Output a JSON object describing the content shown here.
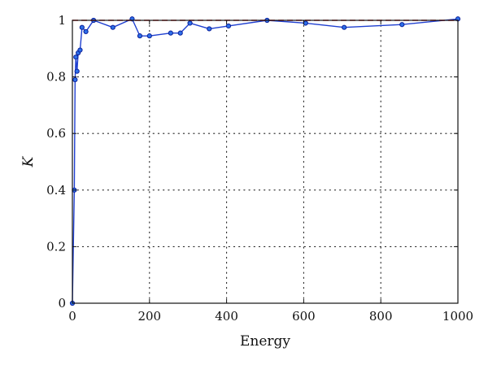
{
  "chart_data": {
    "type": "line",
    "xlabel": "Energy",
    "ylabel": "K",
    "xlim": [
      0,
      1000
    ],
    "ylim": [
      0,
      1
    ],
    "x_ticks": [
      0,
      200,
      400,
      600,
      800,
      1000
    ],
    "y_ticks": [
      0,
      0.2,
      0.4,
      0.6,
      0.8,
      1
    ],
    "x_tick_labels": [
      "0",
      "200",
      "400",
      "600",
      "800",
      "1000"
    ],
    "y_tick_labels": [
      "0",
      "0.2",
      "0.4",
      "0.6",
      "0.8",
      "1"
    ],
    "grid": true,
    "series": [
      {
        "color": "#1f3fd0",
        "marker": "circle",
        "x": [
          0,
          5,
          7,
          9,
          12,
          15,
          20,
          25,
          35,
          55,
          105,
          155,
          175,
          200,
          255,
          280,
          305,
          355,
          405,
          505,
          605,
          705,
          855,
          1000
        ],
        "y": [
          0,
          0.4,
          0.79,
          0.87,
          0.82,
          0.885,
          0.895,
          0.975,
          0.96,
          1.0,
          0.975,
          1.005,
          0.945,
          0.945,
          0.955,
          0.955,
          0.99,
          0.97,
          0.98,
          1.0,
          0.99,
          0.975,
          0.985,
          1.005
        ]
      },
      {
        "color": "#d42020",
        "style": "dashed",
        "x": [
          0,
          1000
        ],
        "y": [
          1,
          1
        ]
      }
    ]
  }
}
